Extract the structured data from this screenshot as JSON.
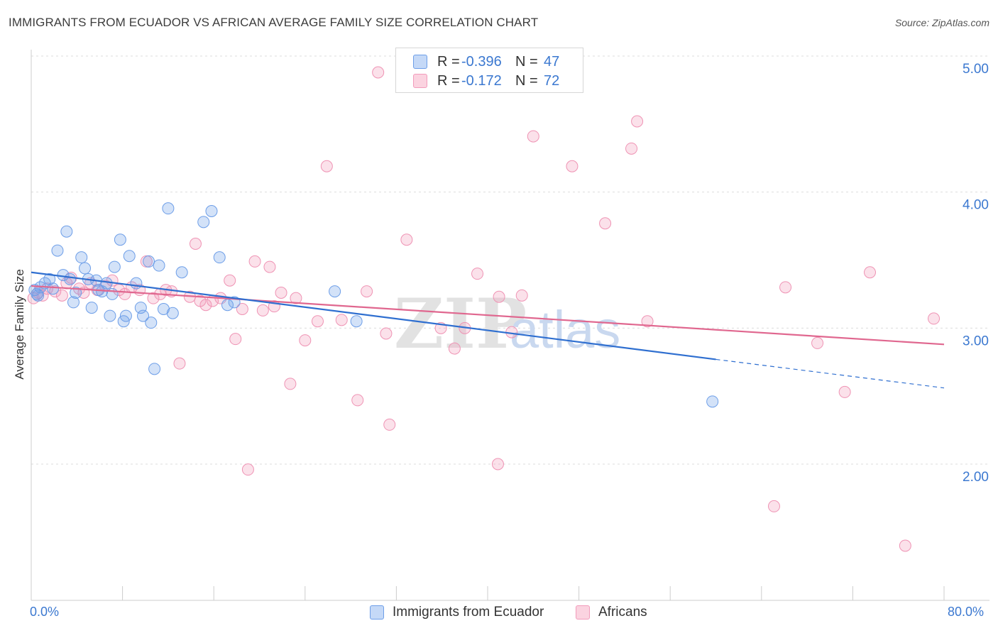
{
  "title": "IMMIGRANTS FROM ECUADOR VS AFRICAN AVERAGE FAMILY SIZE CORRELATION CHART",
  "source": "Source: ZipAtlas.com",
  "watermark": {
    "zip": "ZIP",
    "atlas": "atlas"
  },
  "legend": {
    "rows": [
      {
        "r_label": "R =",
        "r_value": "-0.396",
        "n_label": "N =",
        "n_value": "47"
      },
      {
        "r_label": "R =",
        "r_value": "-0.172",
        "n_label": "N =",
        "n_value": "72"
      }
    ]
  },
  "chart_data": {
    "type": "scatter",
    "xlabel": "",
    "ylabel": "Average Family Size",
    "xlim": [
      0,
      80
    ],
    "ylim": [
      1.1,
      5.3
    ],
    "x_tick_labels": [
      "0.0%",
      "80.0%"
    ],
    "y_ticks": [
      2.0,
      3.0,
      4.0,
      5.0
    ],
    "y_tick_labels": [
      "2.00",
      "3.00",
      "4.00",
      "5.00"
    ],
    "grid": true,
    "legend_position": "bottom",
    "colors": {
      "ecuador": "#6d9ee8",
      "africans": "#f29bbb",
      "ecuador_line": "#2f6fd0",
      "africans_line": "#e0678f",
      "axis_text": "#3b78d0"
    },
    "series": [
      {
        "name": "Immigrants from Ecuador",
        "trend": {
          "x0": 0,
          "y0": 3.41,
          "x1": 60,
          "y1": 2.77,
          "dashed_to_x": 80,
          "dashed_to_y": 2.56
        },
        "points": [
          [
            0.3,
            3.28
          ],
          [
            0.5,
            3.25
          ],
          [
            0.8,
            3.3
          ],
          [
            1.2,
            3.33
          ],
          [
            1.6,
            3.36
          ],
          [
            1.9,
            3.29
          ],
          [
            2.3,
            3.57
          ],
          [
            2.8,
            3.39
          ],
          [
            3.1,
            3.71
          ],
          [
            3.4,
            3.36
          ],
          [
            3.7,
            3.19
          ],
          [
            3.9,
            3.26
          ],
          [
            4.4,
            3.52
          ],
          [
            4.7,
            3.44
          ],
          [
            5.0,
            3.36
          ],
          [
            5.3,
            3.15
          ],
          [
            5.7,
            3.35
          ],
          [
            5.9,
            3.28
          ],
          [
            6.2,
            3.27
          ],
          [
            6.6,
            3.33
          ],
          [
            6.9,
            3.09
          ],
          [
            7.1,
            3.25
          ],
          [
            7.3,
            3.45
          ],
          [
            7.8,
            3.65
          ],
          [
            8.1,
            3.05
          ],
          [
            8.3,
            3.09
          ],
          [
            8.6,
            3.53
          ],
          [
            9.2,
            3.33
          ],
          [
            9.6,
            3.15
          ],
          [
            9.8,
            3.09
          ],
          [
            10.3,
            3.49
          ],
          [
            10.5,
            3.04
          ],
          [
            10.8,
            2.7
          ],
          [
            11.2,
            3.46
          ],
          [
            11.6,
            3.14
          ],
          [
            12.0,
            3.88
          ],
          [
            12.4,
            3.11
          ],
          [
            13.2,
            3.41
          ],
          [
            15.1,
            3.78
          ],
          [
            15.8,
            3.86
          ],
          [
            16.5,
            3.52
          ],
          [
            17.2,
            3.17
          ],
          [
            17.8,
            3.19
          ],
          [
            26.6,
            3.27
          ],
          [
            28.5,
            3.05
          ],
          [
            59.7,
            2.46
          ],
          [
            0.6,
            3.24
          ]
        ]
      },
      {
        "name": "Africans",
        "trend": {
          "x0": 0,
          "y0": 3.31,
          "x1": 80,
          "y1": 2.88
        },
        "points": [
          [
            0.2,
            3.22
          ],
          [
            0.6,
            3.26
          ],
          [
            1.0,
            3.24
          ],
          [
            1.4,
            3.29
          ],
          [
            2.1,
            3.27
          ],
          [
            2.7,
            3.24
          ],
          [
            3.1,
            3.33
          ],
          [
            3.5,
            3.37
          ],
          [
            4.2,
            3.29
          ],
          [
            4.6,
            3.26
          ],
          [
            5.2,
            3.33
          ],
          [
            5.8,
            3.28
          ],
          [
            6.5,
            3.31
          ],
          [
            7.1,
            3.35
          ],
          [
            7.7,
            3.28
          ],
          [
            8.2,
            3.25
          ],
          [
            8.8,
            3.3
          ],
          [
            9.5,
            3.28
          ],
          [
            10.1,
            3.49
          ],
          [
            10.7,
            3.22
          ],
          [
            11.3,
            3.25
          ],
          [
            11.8,
            3.28
          ],
          [
            12.3,
            3.27
          ],
          [
            13.0,
            2.74
          ],
          [
            13.9,
            3.23
          ],
          [
            14.4,
            3.62
          ],
          [
            14.8,
            3.2
          ],
          [
            15.3,
            3.17
          ],
          [
            15.9,
            3.2
          ],
          [
            16.6,
            3.22
          ],
          [
            17.4,
            3.35
          ],
          [
            17.9,
            2.92
          ],
          [
            18.5,
            3.14
          ],
          [
            19.0,
            1.96
          ],
          [
            19.6,
            3.49
          ],
          [
            20.3,
            3.13
          ],
          [
            20.9,
            3.45
          ],
          [
            21.3,
            3.16
          ],
          [
            21.9,
            3.26
          ],
          [
            22.7,
            2.59
          ],
          [
            23.2,
            3.22
          ],
          [
            24.0,
            2.91
          ],
          [
            25.1,
            3.05
          ],
          [
            25.9,
            4.19
          ],
          [
            27.2,
            3.06
          ],
          [
            28.6,
            2.47
          ],
          [
            29.4,
            3.27
          ],
          [
            30.4,
            4.88
          ],
          [
            31.1,
            2.96
          ],
          [
            31.4,
            2.29
          ],
          [
            32.9,
            3.65
          ],
          [
            35.9,
            3.0
          ],
          [
            37.1,
            2.85
          ],
          [
            38.0,
            3.0
          ],
          [
            39.1,
            3.4
          ],
          [
            40.9,
            2.0
          ],
          [
            41.0,
            3.23
          ],
          [
            42.1,
            2.97
          ],
          [
            43.0,
            3.24
          ],
          [
            44.0,
            4.41
          ],
          [
            47.4,
            4.19
          ],
          [
            50.3,
            3.77
          ],
          [
            52.6,
            4.32
          ],
          [
            53.1,
            4.52
          ],
          [
            54.0,
            3.05
          ],
          [
            65.1,
            1.69
          ],
          [
            66.1,
            3.3
          ],
          [
            68.9,
            2.89
          ],
          [
            71.3,
            2.53
          ],
          [
            73.5,
            3.41
          ],
          [
            76.6,
            1.4
          ],
          [
            79.1,
            3.07
          ]
        ]
      }
    ]
  }
}
